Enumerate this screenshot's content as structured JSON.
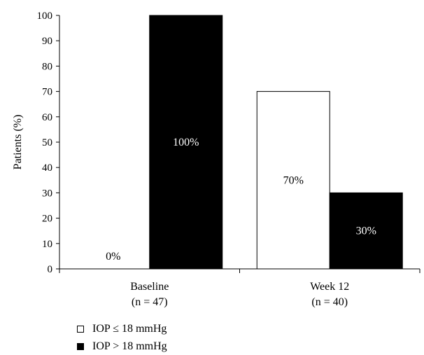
{
  "chart_data": {
    "type": "bar",
    "ylabel": "Patients (%)",
    "ylim": [
      0,
      100
    ],
    "yticks": [
      "0",
      "10",
      "20",
      "30",
      "40",
      "50",
      "60",
      "70",
      "80",
      "90",
      "100"
    ],
    "categories": [
      {
        "label": "Baseline",
        "sublabel": "(n = 47)"
      },
      {
        "label": "Week 12",
        "sublabel": "(n = 40)"
      }
    ],
    "series": [
      {
        "name": "IOP ≤ 18 mmHg",
        "color": "#ffffff",
        "values": [
          0,
          70
        ],
        "data_labels": [
          "0%",
          "70%"
        ]
      },
      {
        "name": "IOP > 18 mmHg",
        "color": "#000000",
        "values": [
          100,
          30
        ],
        "data_labels": [
          "100%",
          "30%"
        ]
      }
    ],
    "legend_position": "bottom-left",
    "grid": false
  }
}
